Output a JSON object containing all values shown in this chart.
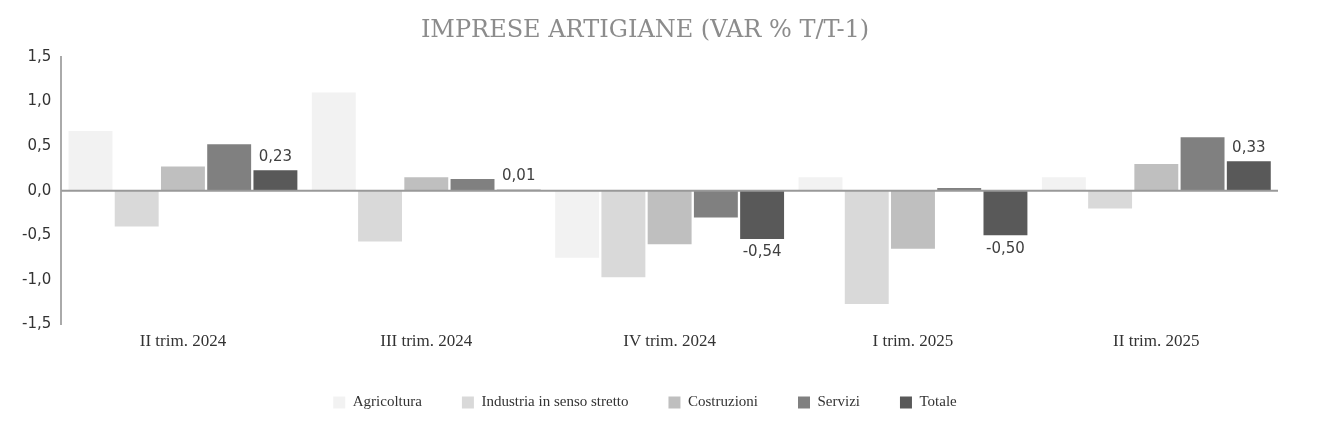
{
  "chart_data": {
    "type": "bar",
    "title": "IMPRESE ARTIGIANE (VAR % T/T-1)",
    "categories": [
      "II trim. 2024",
      "III trim. 2024",
      "IV trim. 2024",
      "I trim. 2025",
      "II trim. 2025"
    ],
    "series": [
      {
        "name": "Agricoltura",
        "color": "#f2f2f2",
        "values": [
          0.67,
          1.1,
          -0.75,
          0.15,
          0.15
        ]
      },
      {
        "name": "Industria in senso stretto",
        "color": "#d9d9d9",
        "values": [
          -0.4,
          -0.57,
          -0.97,
          -1.27,
          -0.2
        ]
      },
      {
        "name": "Costruzioni",
        "color": "#bfbfbf",
        "values": [
          0.27,
          0.15,
          -0.6,
          -0.65,
          0.3
        ]
      },
      {
        "name": "Servizi",
        "color": "#808080",
        "values": [
          0.52,
          0.13,
          -0.3,
          0.03,
          0.6
        ]
      },
      {
        "name": "Totale",
        "color": "#595959",
        "values": [
          0.23,
          0.01,
          -0.54,
          -0.5,
          0.33
        ],
        "value_labels": [
          "0,23",
          "0,01",
          "-0,54",
          "-0,50",
          "0,33"
        ]
      }
    ],
    "ylim": [
      -1.5,
      1.5
    ],
    "yticks": [
      {
        "value": -1.5,
        "label": "-1,5"
      },
      {
        "value": -1,
        "label": "-1,0"
      },
      {
        "value": -0.5,
        "label": "-0,5"
      },
      {
        "value": 0,
        "label": "0,0"
      },
      {
        "value": 0.5,
        "label": "0,5"
      },
      {
        "value": 1,
        "label": "1,0"
      },
      {
        "value": 1.5,
        "label": "1,5"
      }
    ],
    "ref_lines": [
      {
        "axis": "y",
        "value": 0,
        "color": "#999999"
      }
    ],
    "grid": false,
    "legend": "bottom"
  }
}
